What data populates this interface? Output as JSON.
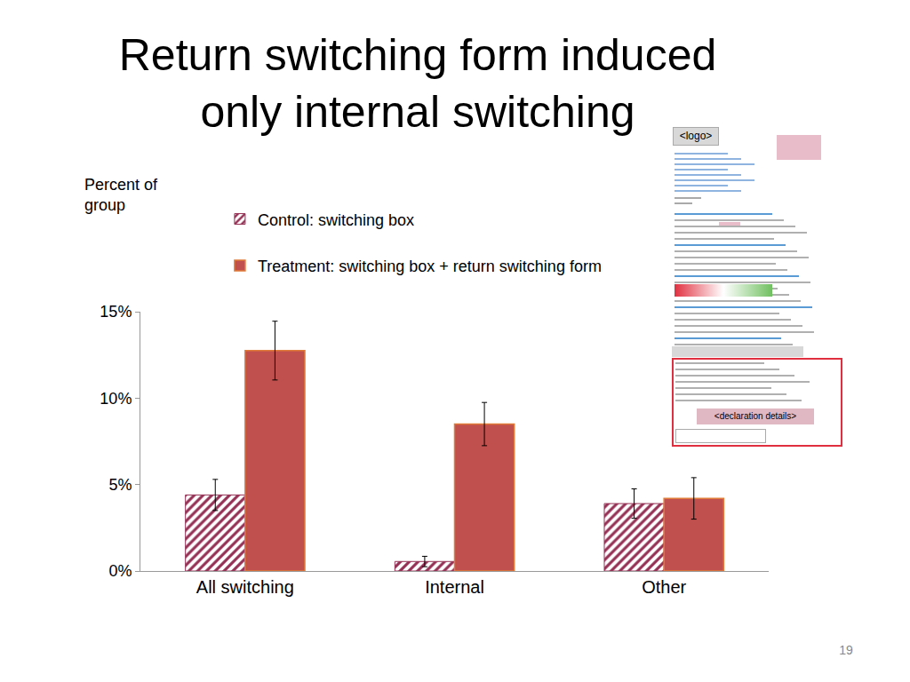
{
  "chart_data": {
    "type": "bar",
    "title": "Return switching form induced only internal switching",
    "y_label": "Percent of group",
    "categories": [
      "All switching",
      "Internal",
      "Other"
    ],
    "series": [
      {
        "name": "Control: switching box",
        "color": "#943054",
        "marker": "hatched",
        "values": [
          4.4,
          0.55,
          3.9
        ],
        "errors": [
          0.9,
          0.3,
          0.85
        ]
      },
      {
        "name": "Treatment: switching box + return switching form",
        "color": "#c0504d",
        "marker": "solid",
        "values": [
          12.75,
          8.5,
          4.2
        ],
        "errors": [
          1.7,
          1.25,
          1.2
        ]
      }
    ],
    "ylim": [
      0,
      15
    ],
    "yticks": [
      {
        "value": 0,
        "label": "0%"
      },
      {
        "value": 5,
        "label": "5%"
      },
      {
        "value": 10,
        "label": "10%"
      },
      {
        "value": 15,
        "label": "15%"
      }
    ],
    "grid": false,
    "legend": "top left"
  },
  "form_thumbnail": {
    "logo": "<logo>",
    "declaration": "<declaration details>"
  },
  "page_number": 19
}
